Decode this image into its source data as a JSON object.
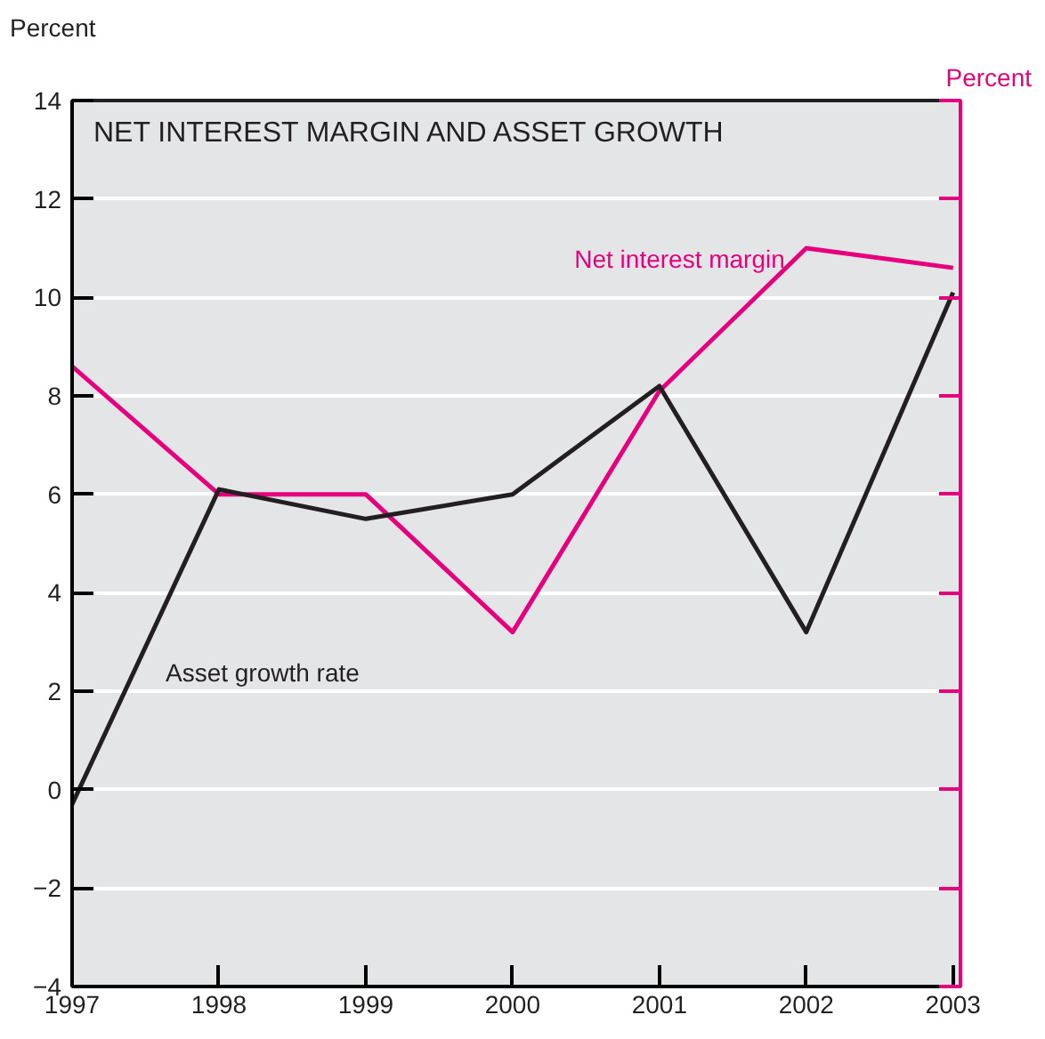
{
  "chart_data": {
    "type": "line",
    "title": "NET INTEREST MARGIN AND ASSET GROWTH",
    "ylabel": "Percent",
    "y2label": "Percent",
    "x": [
      1997,
      1998,
      1999,
      2000,
      2001,
      2002,
      2003
    ],
    "series": [
      {
        "name": "Net interest margin",
        "color": "#e6007e",
        "values": [
          8.6,
          6.0,
          6.0,
          3.2,
          8.1,
          11.0,
          10.6
        ]
      },
      {
        "name": "Asset growth rate",
        "color": "#231f20",
        "values": [
          -0.3,
          6.1,
          5.5,
          6.0,
          8.2,
          3.2,
          10.1
        ]
      }
    ],
    "xlim": [
      1997,
      2003.05
    ],
    "xticks": [
      1997,
      1998,
      1999,
      2000,
      2001,
      2002,
      2003
    ],
    "ylim": [
      -4,
      14
    ],
    "yticks": [
      {
        "value": -4,
        "label": "−4"
      },
      {
        "value": -2,
        "label": "−2"
      },
      0,
      2,
      4,
      6,
      8,
      10,
      12,
      14
    ],
    "grid": "y",
    "marker": "none",
    "line_style": "solid"
  }
}
